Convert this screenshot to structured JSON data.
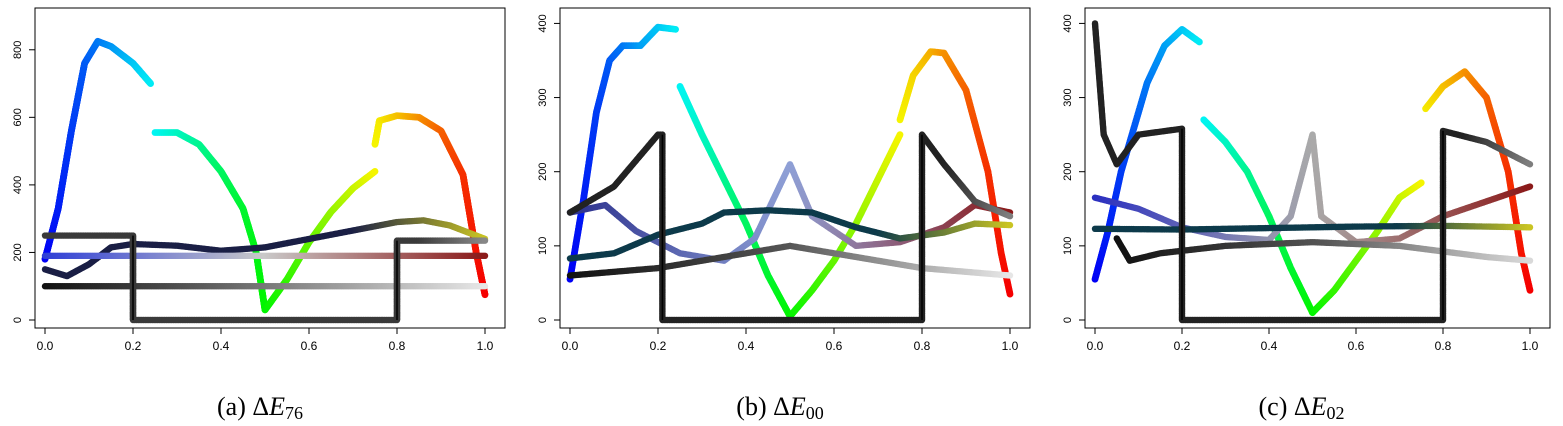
{
  "chart_data": [
    {
      "type": "scatter",
      "caption_prefix": "(a) Δ",
      "caption_var": "E",
      "caption_sub": "76",
      "xlim": [
        0,
        1
      ],
      "ylim": [
        0,
        900
      ],
      "x_ticks": [
        "0.0",
        "0.2",
        "0.4",
        "0.6",
        "0.8",
        "1.0"
      ],
      "y_ticks": [
        {
          "v": 0,
          "label": "0"
        },
        {
          "v": 200,
          "label": "200"
        },
        {
          "v": 400,
          "label": "400"
        },
        {
          "v": 600,
          "label": "600"
        },
        {
          "v": 800,
          "label": "800"
        }
      ],
      "series": [
        {
          "kind": "hue",
          "color_mode": "hue",
          "points": [
            [
              0,
              180
            ],
            [
              0.03,
              330
            ],
            [
              0.06,
              560
            ],
            [
              0.09,
              760
            ],
            [
              0.12,
              825
            ],
            [
              0.15,
              810
            ],
            [
              0.2,
              760
            ],
            [
              0.24,
              700
            ]
          ]
        },
        {
          "kind": "hue",
          "color_mode": "hue",
          "points": [
            [
              0.25,
              555
            ],
            [
              0.3,
              555
            ],
            [
              0.35,
              520
            ],
            [
              0.4,
              440
            ],
            [
              0.45,
              330
            ],
            [
              0.48,
              200
            ],
            [
              0.5,
              30
            ]
          ]
        },
        {
          "kind": "hue",
          "color_mode": "hue",
          "points": [
            [
              0.5,
              30
            ],
            [
              0.55,
              120
            ],
            [
              0.6,
              230
            ],
            [
              0.65,
              320
            ],
            [
              0.7,
              390
            ],
            [
              0.75,
              440
            ]
          ]
        },
        {
          "kind": "hue",
          "color_mode": "hue",
          "points": [
            [
              0.75,
              520
            ],
            [
              0.76,
              590
            ],
            [
              0.8,
              605
            ],
            [
              0.85,
              600
            ],
            [
              0.9,
              560
            ],
            [
              0.95,
              430
            ],
            [
              0.98,
              200
            ],
            [
              1.0,
              75
            ]
          ]
        },
        {
          "kind": "solid",
          "color": "#1a1f45",
          "points": [
            [
              0,
              150
            ],
            [
              0.05,
              130
            ],
            [
              0.1,
              165
            ],
            [
              0.15,
              215
            ],
            [
              0.2,
              225
            ],
            [
              0.3,
              220
            ],
            [
              0.4,
              205
            ],
            [
              0.5,
              215
            ],
            [
              0.6,
              240
            ],
            [
              0.7,
              265
            ],
            [
              0.8,
              290
            ],
            [
              0.86,
              295
            ],
            [
              0.92,
              280
            ],
            [
              1.0,
              240
            ]
          ],
          "end_color": "#c9c423"
        },
        {
          "kind": "gradient",
          "from": "#2e3ed6",
          "to": "#8b1a1a",
          "mid": "#c9c9c9",
          "points": [
            [
              0,
              190
            ],
            [
              0.5,
              190
            ],
            [
              1,
              190
            ]
          ]
        },
        {
          "kind": "gradient",
          "from": "#111111",
          "to": "#e6e6e6",
          "mid": "#777777",
          "points": [
            [
              0,
              100
            ],
            [
              0.5,
              100
            ],
            [
              1,
              100
            ]
          ]
        },
        {
          "kind": "step",
          "color": "#3a3a3a",
          "points": [
            [
              0,
              250
            ],
            [
              0.2,
              250
            ],
            [
              0.2,
              0
            ],
            [
              0.8,
              0
            ],
            [
              0.8,
              235
            ],
            [
              1.0,
              235
            ]
          ]
        }
      ]
    },
    {
      "type": "scatter",
      "caption_prefix": "(b) Δ",
      "caption_var": "E",
      "caption_sub": "00",
      "xlim": [
        0,
        1
      ],
      "ylim": [
        0,
        410
      ],
      "x_ticks": [
        "0.0",
        "0.2",
        "0.4",
        "0.6",
        "0.8",
        "1.0"
      ],
      "y_ticks": [
        {
          "v": 0,
          "label": "0"
        },
        {
          "v": 100,
          "label": "100"
        },
        {
          "v": 200,
          "label": "200"
        },
        {
          "v": 300,
          "label": "300"
        },
        {
          "v": 400,
          "label": "400"
        }
      ],
      "series": [
        {
          "kind": "hue",
          "color_mode": "hue",
          "points": [
            [
              0,
              55
            ],
            [
              0.03,
              160
            ],
            [
              0.06,
              280
            ],
            [
              0.09,
              350
            ],
            [
              0.12,
              370
            ],
            [
              0.16,
              370
            ],
            [
              0.2,
              395
            ],
            [
              0.24,
              392
            ]
          ]
        },
        {
          "kind": "hue",
          "color_mode": "hue",
          "points": [
            [
              0.25,
              315
            ],
            [
              0.3,
              250
            ],
            [
              0.35,
              190
            ],
            [
              0.4,
              130
            ],
            [
              0.45,
              60
            ],
            [
              0.5,
              5
            ]
          ]
        },
        {
          "kind": "hue",
          "color_mode": "hue",
          "points": [
            [
              0.5,
              5
            ],
            [
              0.55,
              40
            ],
            [
              0.6,
              80
            ],
            [
              0.65,
              130
            ],
            [
              0.7,
              190
            ],
            [
              0.75,
              250
            ]
          ]
        },
        {
          "kind": "hue",
          "color_mode": "hue",
          "points": [
            [
              0.75,
              270
            ],
            [
              0.78,
              330
            ],
            [
              0.82,
              362
            ],
            [
              0.85,
              360
            ],
            [
              0.9,
              310
            ],
            [
              0.95,
              200
            ],
            [
              0.98,
              90
            ],
            [
              1.0,
              35
            ]
          ]
        },
        {
          "kind": "gradient",
          "from": "#2a2f8c",
          "to": "#d9d9d9",
          "mid": "#8fa0d6",
          "points": [
            [
              0,
              145
            ],
            [
              0.08,
              155
            ],
            [
              0.15,
              120
            ],
            [
              0.25,
              90
            ],
            [
              0.35,
              80
            ],
            [
              0.42,
              110
            ],
            [
              0.5,
              210
            ],
            [
              0.55,
              140
            ],
            [
              0.65,
              100
            ],
            [
              0.75,
              105
            ],
            [
              0.85,
              125
            ],
            [
              0.92,
              155
            ],
            [
              1.0,
              145
            ]
          ],
          "end_color": "#8b1a1a"
        },
        {
          "kind": "solid",
          "color": "#0d3a4a",
          "points": [
            [
              0,
              83
            ],
            [
              0.1,
              90
            ],
            [
              0.2,
              115
            ],
            [
              0.3,
              130
            ],
            [
              0.35,
              145
            ],
            [
              0.45,
              148
            ],
            [
              0.55,
              145
            ],
            [
              0.65,
              125
            ],
            [
              0.75,
              110
            ],
            [
              0.85,
              118
            ],
            [
              0.92,
              130
            ],
            [
              1.0,
              128
            ]
          ],
          "end_color": "#c9c423"
        },
        {
          "kind": "gradient",
          "from": "#111111",
          "to": "#e6e6e6",
          "mid": "#555555",
          "points": [
            [
              0,
              60
            ],
            [
              0.2,
              70
            ],
            [
              0.4,
              90
            ],
            [
              0.5,
              100
            ],
            [
              0.6,
              90
            ],
            [
              0.8,
              70
            ],
            [
              1.0,
              60
            ]
          ]
        },
        {
          "kind": "step",
          "color": "#222222",
          "points": [
            [
              0,
              145
            ],
            [
              0.1,
              180
            ],
            [
              0.2,
              250
            ],
            [
              0.21,
              250
            ],
            [
              0.21,
              0
            ],
            [
              0.8,
              0
            ],
            [
              0.8,
              250
            ],
            [
              0.85,
              210
            ],
            [
              0.92,
              160
            ],
            [
              1.0,
              140
            ]
          ]
        }
      ]
    },
    {
      "type": "scatter",
      "caption_prefix": "(c) Δ",
      "caption_var": "E",
      "caption_sub": "02",
      "xlim": [
        0,
        1
      ],
      "ylim": [
        0,
        410
      ],
      "x_ticks": [
        "0.0",
        "0.2",
        "0.4",
        "0.6",
        "0.8",
        "1.0"
      ],
      "y_ticks": [
        {
          "v": 0,
          "label": "0"
        },
        {
          "v": 100,
          "label": "100"
        },
        {
          "v": 200,
          "label": "200"
        },
        {
          "v": 300,
          "label": "300"
        },
        {
          "v": 400,
          "label": "400"
        }
      ],
      "series": [
        {
          "kind": "hue",
          "color_mode": "hue",
          "points": [
            [
              0,
              55
            ],
            [
              0.03,
              120
            ],
            [
              0.06,
              200
            ],
            [
              0.09,
              260
            ],
            [
              0.12,
              320
            ],
            [
              0.16,
              370
            ],
            [
              0.2,
              392
            ],
            [
              0.24,
              375
            ]
          ]
        },
        {
          "kind": "hue",
          "color_mode": "hue",
          "points": [
            [
              0.25,
              270
            ],
            [
              0.3,
              240
            ],
            [
              0.35,
              200
            ],
            [
              0.4,
              140
            ],
            [
              0.45,
              70
            ],
            [
              0.5,
              10
            ]
          ]
        },
        {
          "kind": "hue",
          "color_mode": "hue",
          "points": [
            [
              0.5,
              10
            ],
            [
              0.55,
              40
            ],
            [
              0.6,
              80
            ],
            [
              0.65,
              120
            ],
            [
              0.7,
              165
            ],
            [
              0.75,
              185
            ]
          ]
        },
        {
          "kind": "hue",
          "color_mode": "hue",
          "points": [
            [
              0.76,
              285
            ],
            [
              0.8,
              315
            ],
            [
              0.85,
              335
            ],
            [
              0.9,
              300
            ],
            [
              0.95,
              200
            ],
            [
              0.98,
              90
            ],
            [
              1.0,
              40
            ]
          ]
        },
        {
          "kind": "gradient",
          "from": "#2a2fc0",
          "to": "#8b8b8b",
          "mid": "#aaaaaa",
          "points": [
            [
              0,
              165
            ],
            [
              0.1,
              150
            ],
            [
              0.2,
              125
            ],
            [
              0.3,
              112
            ],
            [
              0.4,
              108
            ],
            [
              0.45,
              140
            ],
            [
              0.5,
              250
            ],
            [
              0.52,
              140
            ],
            [
              0.6,
              105
            ],
            [
              0.7,
              110
            ],
            [
              0.8,
              140
            ],
            [
              0.9,
              160
            ],
            [
              1.0,
              180
            ]
          ],
          "end_color": "#8b1a1a"
        },
        {
          "kind": "solid",
          "color": "#0d3a4a",
          "points": [
            [
              0,
              123
            ],
            [
              0.2,
              122
            ],
            [
              0.4,
              124
            ],
            [
              0.6,
              126
            ],
            [
              0.8,
              127
            ],
            [
              1.0,
              125
            ]
          ],
          "end_color": "#c9c423"
        },
        {
          "kind": "gradient",
          "from": "#111111",
          "to": "#d9d9d9",
          "mid": "#555555",
          "points": [
            [
              0.05,
              110
            ],
            [
              0.08,
              80
            ],
            [
              0.15,
              90
            ],
            [
              0.3,
              100
            ],
            [
              0.5,
              105
            ],
            [
              0.7,
              100
            ],
            [
              0.9,
              85
            ],
            [
              1.0,
              80
            ]
          ]
        },
        {
          "kind": "step",
          "color": "#222222",
          "points": [
            [
              0,
              400
            ],
            [
              0.02,
              250
            ],
            [
              0.05,
              210
            ],
            [
              0.1,
              250
            ],
            [
              0.2,
              258
            ],
            [
              0.2,
              0
            ],
            [
              0.8,
              0
            ],
            [
              0.8,
              255
            ],
            [
              0.9,
              240
            ],
            [
              1.0,
              210
            ]
          ]
        }
      ]
    }
  ]
}
